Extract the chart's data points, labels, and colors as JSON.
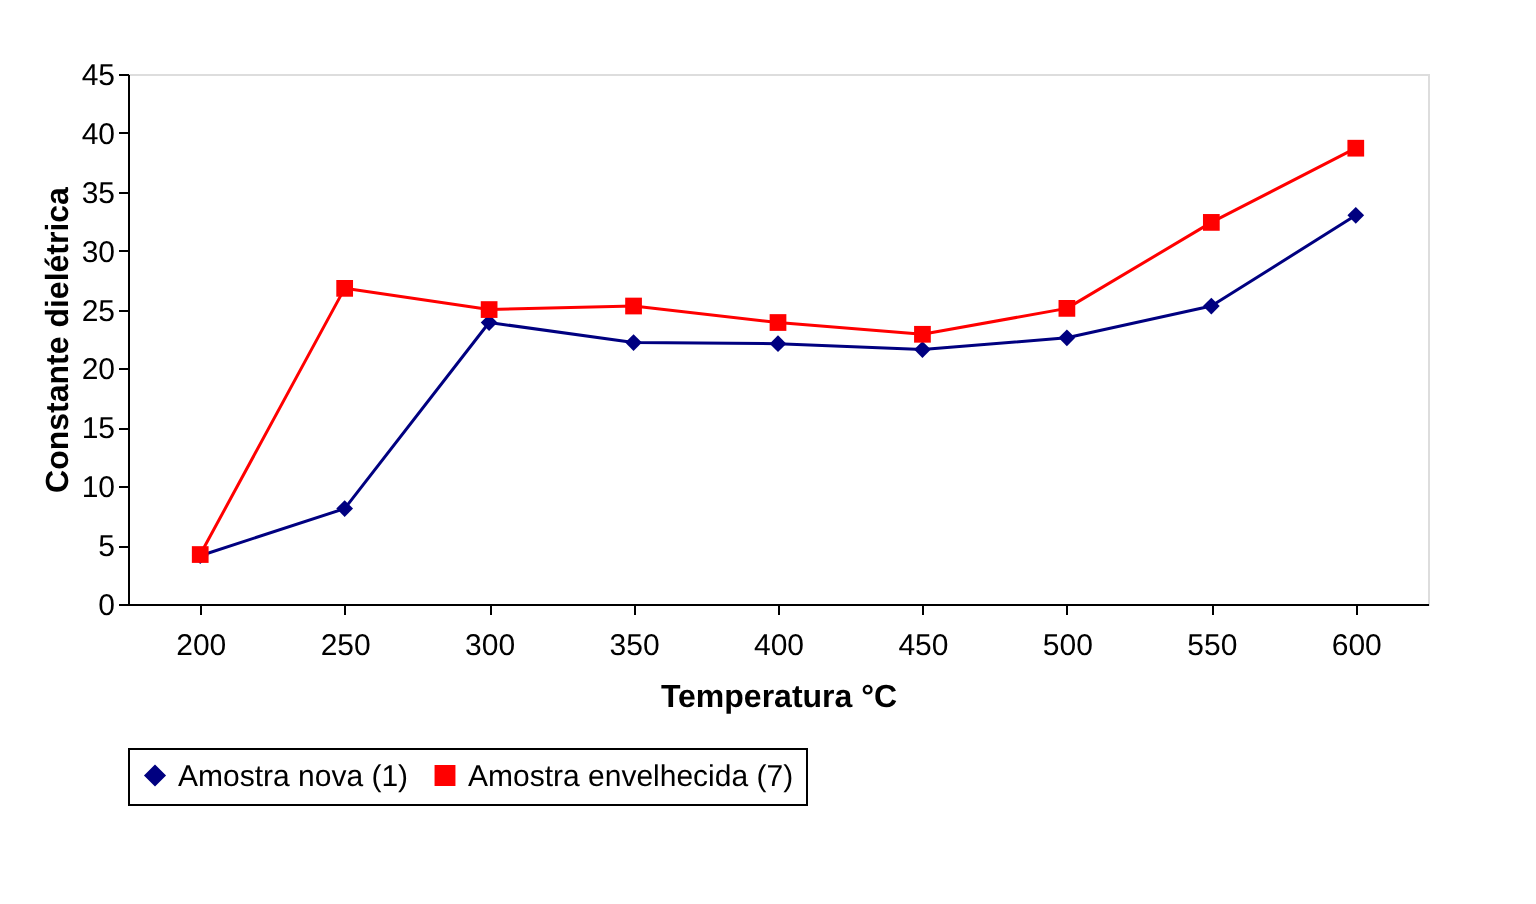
{
  "chart_data": {
    "type": "line",
    "xlabel": "Temperatura °C",
    "ylabel": "Constante dielétrica",
    "categories": [
      "200",
      "250",
      "300",
      "350",
      "400",
      "450",
      "500",
      "550",
      "600"
    ],
    "series": [
      {
        "name": "Amostra nova (1)",
        "color": "#000080",
        "marker": "diamond",
        "values": [
          4.1,
          8.1,
          23.9,
          22.2,
          22.1,
          21.6,
          22.6,
          25.3,
          33.0
        ]
      },
      {
        "name": "Amostra envelhecida (7)",
        "color": "#ff0000",
        "marker": "square",
        "values": [
          4.2,
          26.8,
          25.0,
          25.3,
          23.9,
          22.9,
          25.1,
          32.4,
          38.7
        ]
      }
    ],
    "ylim": [
      0,
      45
    ],
    "yticks": [
      0,
      5,
      10,
      15,
      20,
      25,
      30,
      35,
      40,
      45
    ],
    "grid": false,
    "legend": "bottom"
  }
}
